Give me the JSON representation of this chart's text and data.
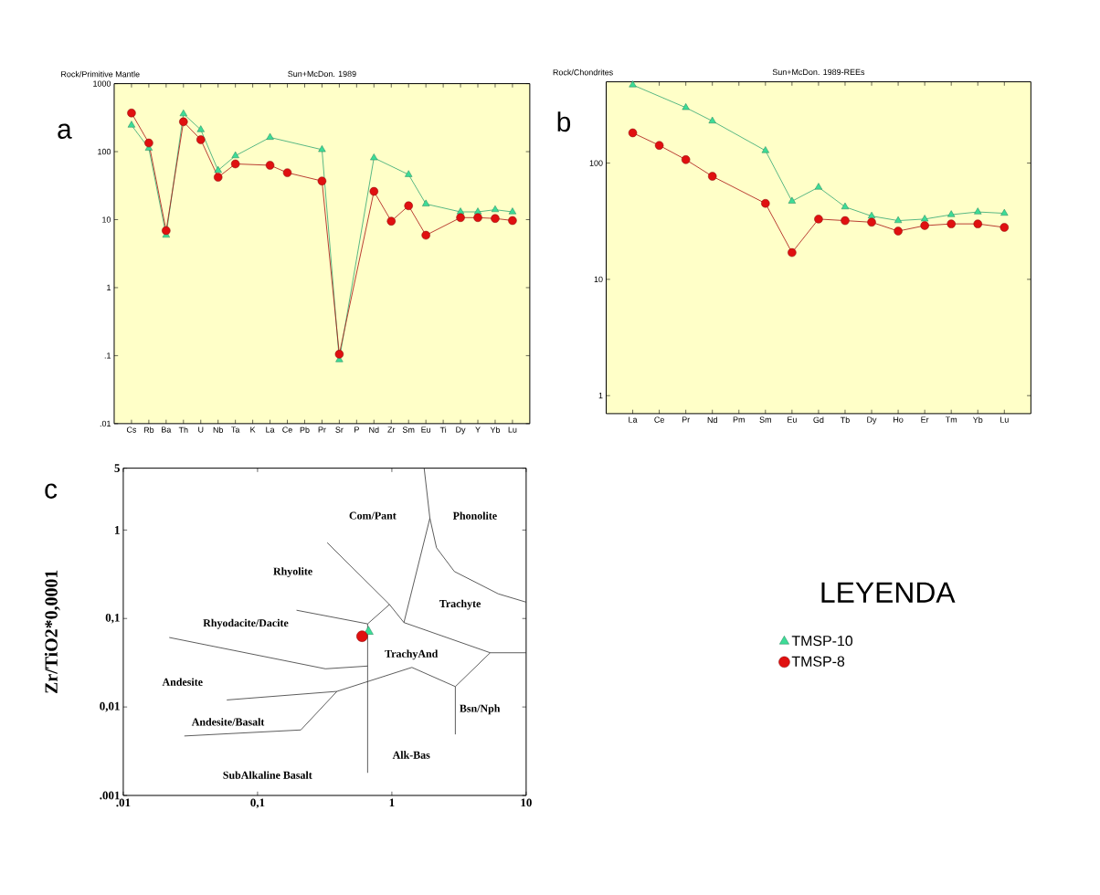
{
  "chart_data": [
    {
      "type": "line",
      "title": "Sun+McDon. 1989",
      "ylabel": "Rock/Primitive Mantle",
      "annotations": [
        "a"
      ],
      "log": true,
      "categories": [
        "Cs",
        "Rb",
        "Ba",
        "Th",
        "U",
        "Nb",
        "Ta",
        "K",
        "La",
        "Ce",
        "Pb",
        "Pr",
        "Sr",
        "P",
        "Nd",
        "Zr",
        "Sm",
        "Eu",
        "Ti",
        "Dy",
        "Y",
        "Yb",
        "Lu"
      ],
      "ylim": [
        0.01,
        1000
      ],
      "yticks": [
        {
          "value": 0.01,
          "label": ".01"
        },
        {
          "value": 0.1,
          "label": ".1"
        },
        1,
        10,
        100,
        1000
      ],
      "series": [
        {
          "color": "#3ddc97",
          "marker": "triangle",
          "values": [
            245,
            112,
            5.9,
            360,
            210,
            53,
            87,
            null,
            162,
            null,
            null,
            107,
            0.087,
            null,
            81,
            null,
            46,
            17,
            null,
            13,
            13,
            14,
            13
          ]
        },
        {
          "color": "#e01010",
          "marker": "circle",
          "values": [
            370,
            134,
            6.9,
            275,
            150,
            42,
            66,
            null,
            63,
            49,
            null,
            37,
            0.105,
            null,
            26,
            9.5,
            16,
            5.9,
            null,
            10.7,
            10.7,
            10.4,
            9.7
          ]
        }
      ]
    },
    {
      "type": "line",
      "title": "Sun+McDon. 1989-REEs",
      "ylabel": "Rock/Chondrites",
      "annotations": [
        "b"
      ],
      "log": true,
      "categories": [
        "La",
        "Ce",
        "Pr",
        "Nd",
        "Pm",
        "Sm",
        "Eu",
        "Gd",
        "Tb",
        "Dy",
        "Ho",
        "Er",
        "Tm",
        "Yb",
        "Lu"
      ],
      "ylim": [
        0.7,
        500
      ],
      "yticks": [
        1,
        10,
        100
      ],
      "series": [
        {
          "color": "#3ddc97",
          "marker": "triangle",
          "values": [
            470,
            null,
            300,
            230,
            null,
            128,
            47,
            62,
            42,
            35,
            32,
            33,
            36,
            38,
            37
          ]
        },
        {
          "color": "#e01010",
          "marker": "circle",
          "values": [
            182,
            142,
            107,
            77,
            null,
            45,
            17,
            33,
            32,
            31,
            26,
            29,
            30,
            30,
            28
          ]
        }
      ]
    },
    {
      "type": "scatter",
      "ylabel": "Zr/TiO2*0,0001",
      "log": "xy",
      "legend": "right",
      "legend_title": "LEYENDA",
      "xlim": [
        0.01,
        10
      ],
      "xticks": [
        {
          "value": 0.01,
          "label": ".01"
        },
        {
          "value": 0.1,
          "label": "0,1"
        },
        1,
        10
      ],
      "ylim": [
        0.001,
        5
      ],
      "yticks": [
        {
          "value": 0.001,
          "label": ".001"
        },
        {
          "value": 0.01,
          "label": "0,01"
        },
        {
          "value": 0.1,
          "label": "0,1"
        },
        1,
        5
      ],
      "annotations": [
        "c",
        "Com/Pant",
        "Phonolite",
        "Rhyolite",
        "Trachyte",
        "Rhyodacite/Dacite",
        "TrachyAnd",
        "Andesite",
        "Bsn/Nph",
        "Andesite/Basalt",
        "Alk-Bas",
        "SubAlkaline Basalt"
      ],
      "series": [
        {
          "type": "line",
          "color": "#333333",
          "marker": "none",
          "x": [
            0.33,
            0.96,
            1.23
          ],
          "values": [
            0.72,
            0.144,
            0.09
          ]
        },
        {
          "type": "line",
          "color": "#333333",
          "marker": "none",
          "x": [
            1.23,
            1.92,
            1.74
          ],
          "values": [
            0.09,
            1.36,
            5
          ]
        },
        {
          "type": "line",
          "color": "#333333",
          "marker": "none",
          "x": [
            1.92,
            2.15,
            2.92,
            6.2,
            10
          ],
          "values": [
            1.36,
            0.63,
            0.34,
            0.19,
            0.153
          ]
        },
        {
          "type": "line",
          "color": "#333333",
          "marker": "none",
          "x": [
            0.96,
            0.66,
            0.66
          ],
          "values": [
            0.144,
            0.087,
            0.0018
          ]
        },
        {
          "type": "line",
          "color": "#333333",
          "marker": "none",
          "x": [
            0.195,
            0.66
          ],
          "values": [
            0.124,
            0.087
          ]
        },
        {
          "type": "line",
          "color": "#333333",
          "marker": "none",
          "x": [
            0.022,
            0.32,
            0.66
          ],
          "values": [
            0.061,
            0.027,
            0.029
          ]
        },
        {
          "type": "line",
          "color": "#333333",
          "marker": "none",
          "x": [
            1.23,
            5.4,
            10
          ],
          "values": [
            0.09,
            0.041,
            0.041
          ]
        },
        {
          "type": "line",
          "color": "#333333",
          "marker": "none",
          "x": [
            5.4,
            2.97,
            2.97
          ],
          "values": [
            0.041,
            0.017,
            0.0049
          ]
        },
        {
          "type": "line",
          "color": "#333333",
          "marker": "none",
          "x": [
            0.059,
            0.39,
            1.41,
            2.97
          ],
          "values": [
            0.012,
            0.015,
            0.028,
            0.017
          ]
        },
        {
          "type": "line",
          "color": "#333333",
          "marker": "none",
          "x": [
            0.39,
            0.21,
            0.0285
          ],
          "values": [
            0.015,
            0.0055,
            0.0047
          ]
        },
        {
          "name": "TMSP-10",
          "color": "#3ddc97",
          "marker": "triangle",
          "x": [
            0.67
          ],
          "values": [
            0.071
          ]
        },
        {
          "name": "TMSP-8",
          "color": "#e01010",
          "marker": "circle",
          "x": [
            0.6
          ],
          "values": [
            0.063
          ]
        }
      ]
    }
  ]
}
